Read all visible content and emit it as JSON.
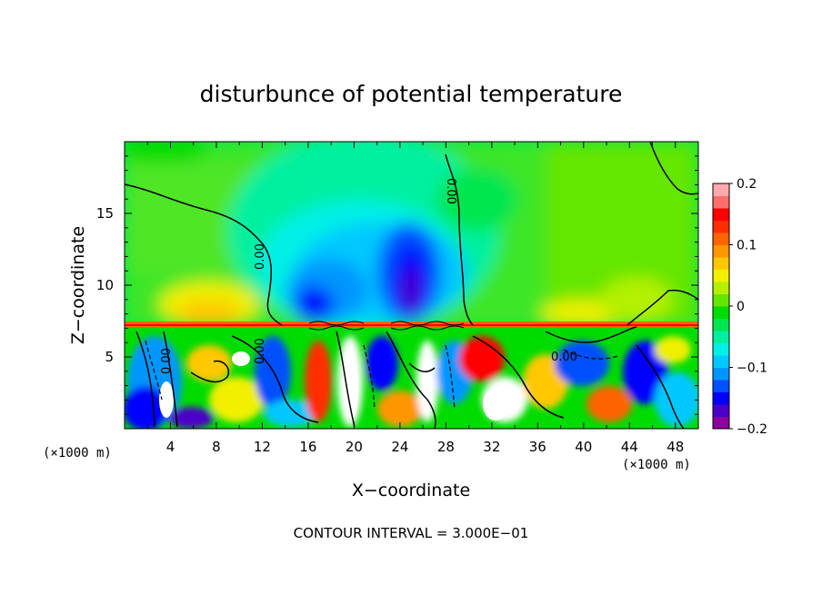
{
  "chart_data": {
    "type": "heatmap",
    "title": "disturbunce of potential temperature",
    "xlabel": "X−coordinate",
    "ylabel": "Z−coordinate",
    "x_unit_left": "(×1000 m)",
    "x_unit_right": "(×1000 m)",
    "xlim": [
      0,
      50
    ],
    "ylim": [
      0,
      20
    ],
    "x_ticks": [
      4,
      8,
      12,
      16,
      20,
      24,
      28,
      32,
      36,
      40,
      44,
      48
    ],
    "y_ticks": [
      5,
      10,
      15
    ],
    "x_tick_labels": [
      "4",
      "8",
      "12",
      "16",
      "20",
      "24",
      "28",
      "32",
      "36",
      "40",
      "44",
      "48"
    ],
    "y_tick_labels": [
      "5",
      "10",
      "15"
    ],
    "colorbar": {
      "min": -0.2,
      "max": 0.2,
      "ticks": [
        0.2,
        0.1,
        0,
        -0.1,
        -0.2
      ],
      "tick_labels": [
        "0.2",
        "0.1",
        "0",
        "−0.1",
        "−0.2"
      ],
      "colors": [
        "#8c00a0",
        "#4b00c8",
        "#0000ff",
        "#0050ff",
        "#0096ff",
        "#00c8ff",
        "#00f0e6",
        "#00f0a0",
        "#00e650",
        "#00dc00",
        "#64e600",
        "#b4f000",
        "#f0f000",
        "#ffc800",
        "#ff9600",
        "#ff6400",
        "#ff2d00",
        "#ff0000",
        "#ff6e6e",
        "#ffaaaa"
      ]
    },
    "contour_labels": [
      "0.00",
      "0.00",
      "0.00",
      "0.00",
      "0.00"
    ],
    "footer": "CONTOUR INTERVAL = 3.000E−01"
  }
}
